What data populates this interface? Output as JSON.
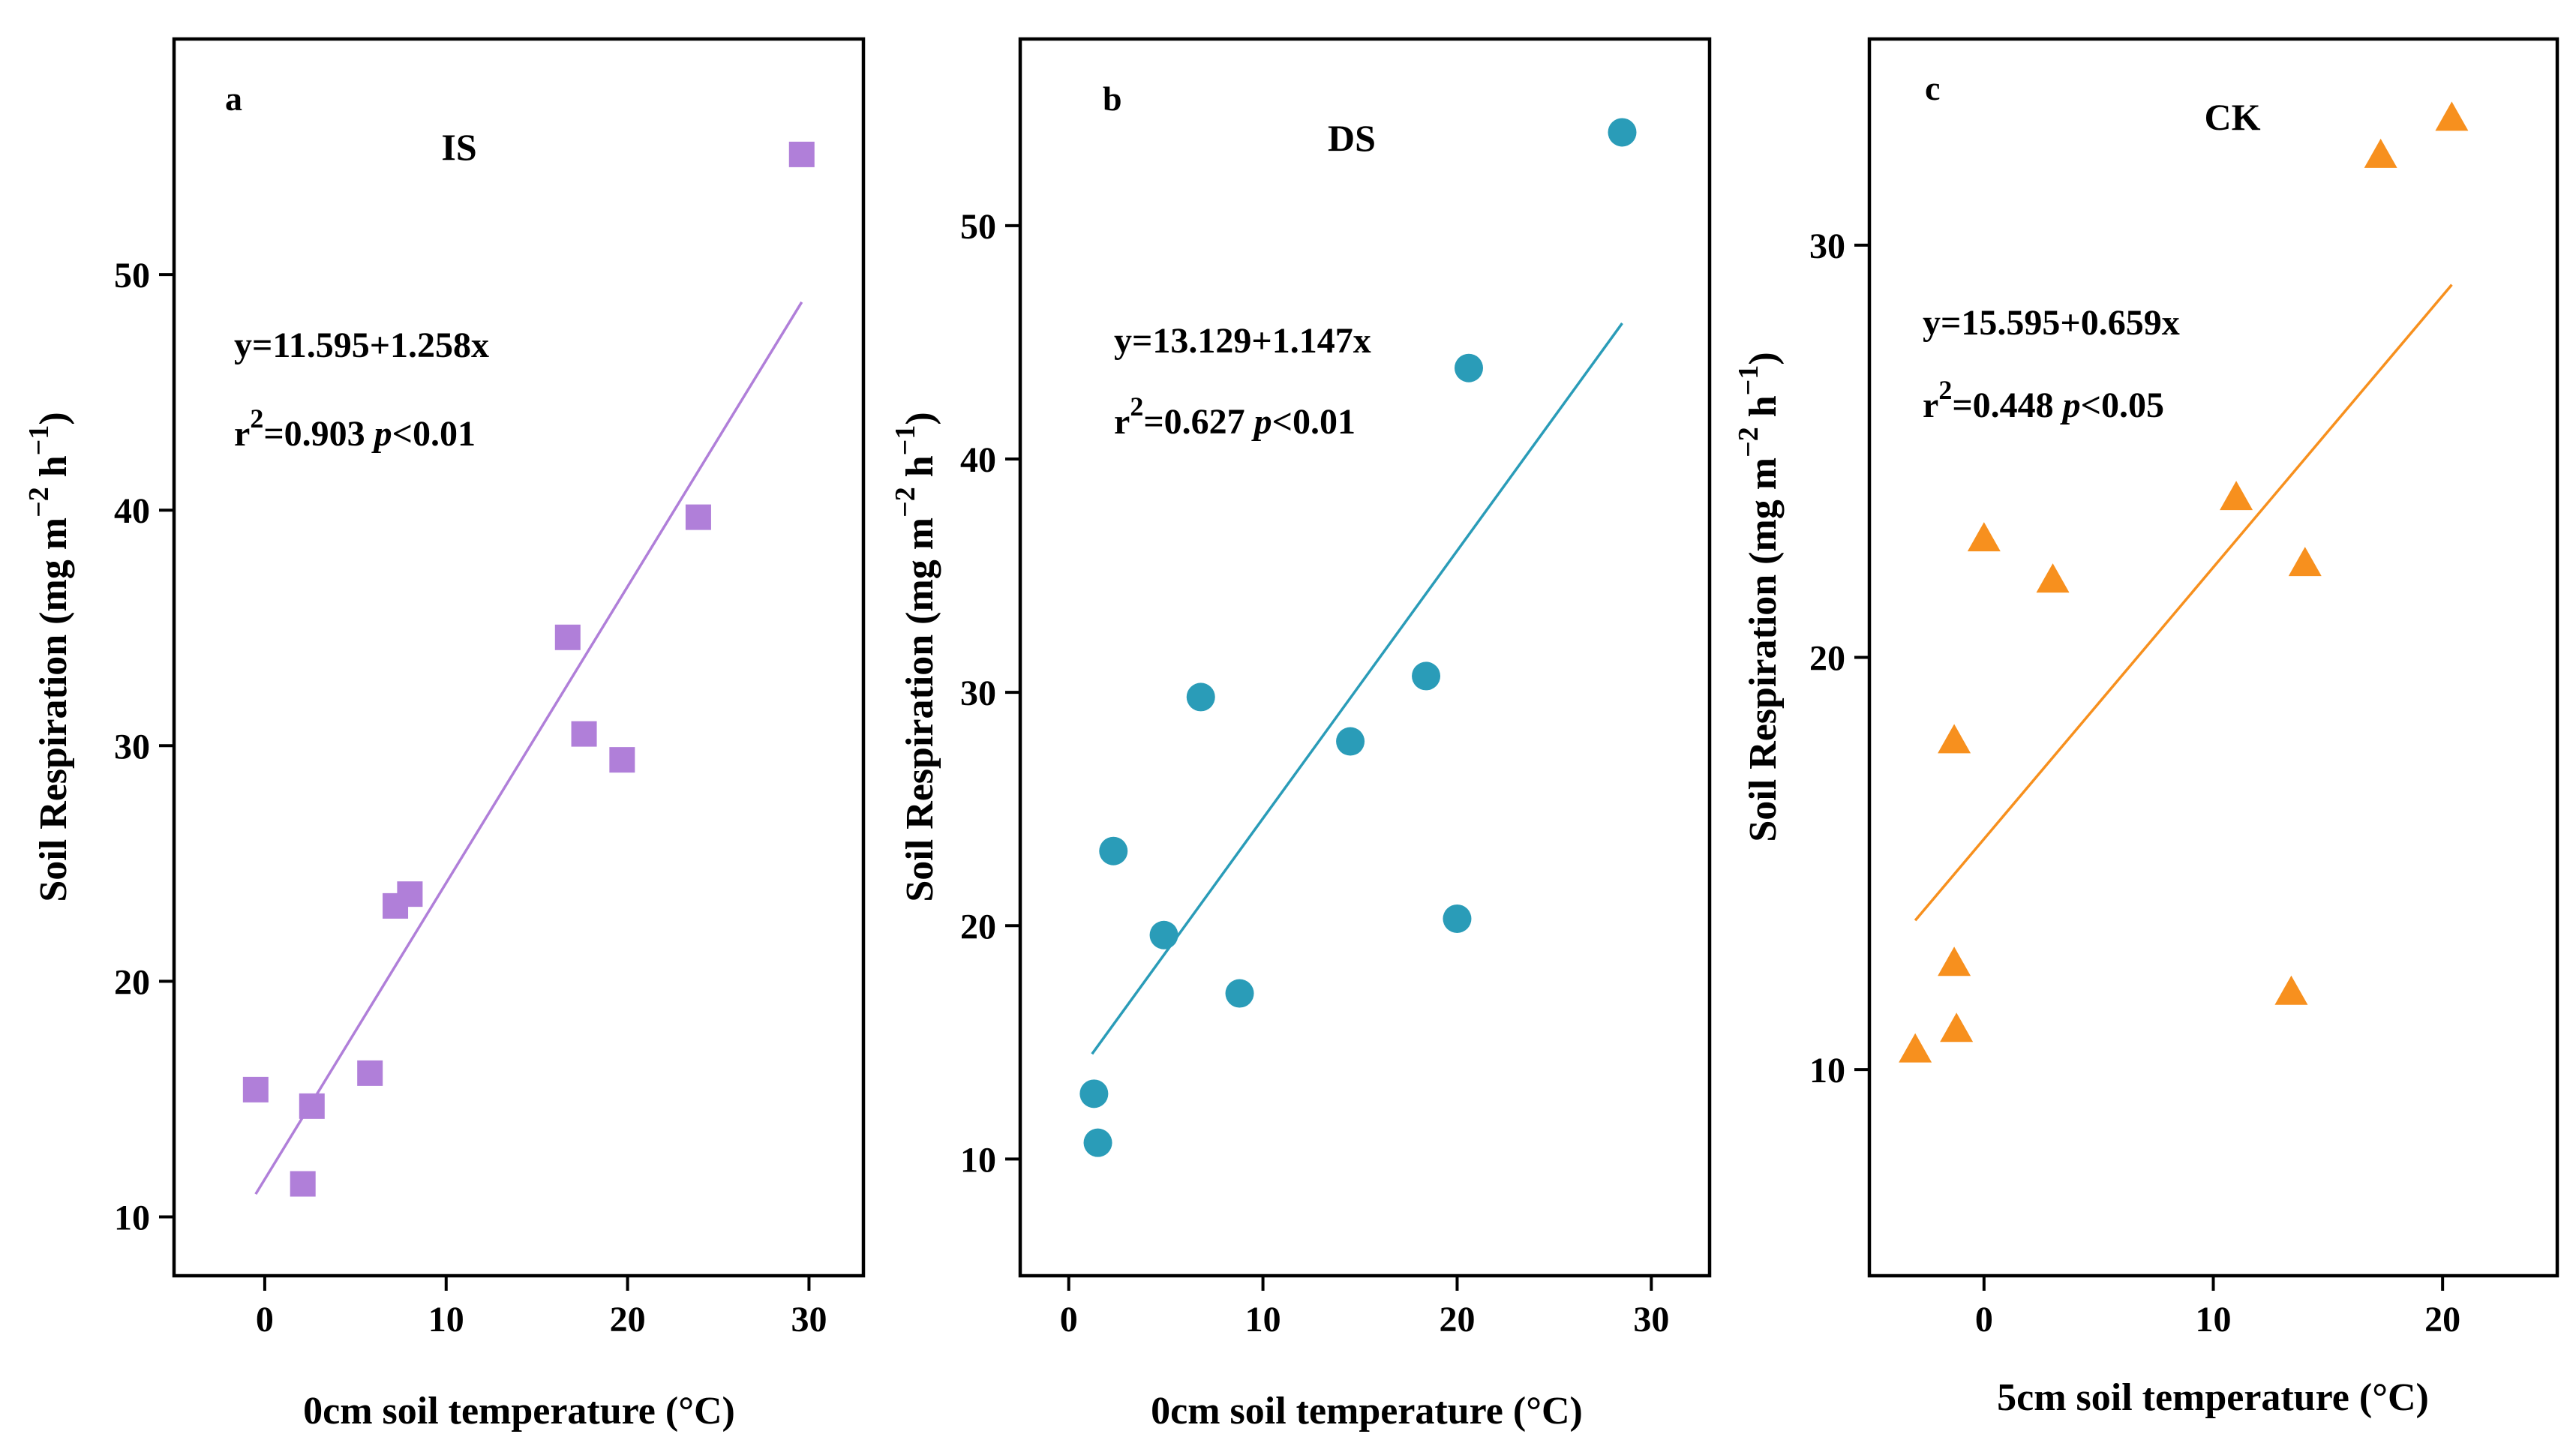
{
  "chart_data": [
    {
      "type": "scatter",
      "panel_letter": "a",
      "title": "IS",
      "xlabel": "0cm soil temperature (°C)",
      "ylabel": {
        "base": "Soil Respiration (mg m",
        "sup1": "−2",
        "mid": " h",
        "sup2": "−1",
        "end": ")"
      },
      "xlim": [
        -5,
        33
      ],
      "ylim": [
        7.5,
        60
      ],
      "xticks": [
        0,
        10,
        20,
        30
      ],
      "yticks": [
        10,
        20,
        30,
        40,
        50
      ],
      "xtick_labels": [
        "0",
        "10",
        "20",
        "30"
      ],
      "ytick_labels": [
        "10",
        "20",
        "30",
        "40",
        "50"
      ],
      "marker": "square",
      "color": "#b07fd9",
      "line_color": "#b07fd9",
      "points": [
        {
          "x": -0.5,
          "y": 15.4
        },
        {
          "x": 2.6,
          "y": 14.7
        },
        {
          "x": 2.1,
          "y": 11.4
        },
        {
          "x": 5.8,
          "y": 16.1
        },
        {
          "x": 7.2,
          "y": 23.2
        },
        {
          "x": 8.0,
          "y": 23.7
        },
        {
          "x": 16.7,
          "y": 34.6
        },
        {
          "x": 17.6,
          "y": 30.5
        },
        {
          "x": 19.7,
          "y": 29.4
        },
        {
          "x": 23.9,
          "y": 39.7
        },
        {
          "x": 29.6,
          "y": 55.1
        }
      ],
      "fit": {
        "intercept": 11.595,
        "slope": 1.258,
        "x_range": [
          -0.5,
          29.6
        ]
      },
      "equation": "y=11.595+1.258x",
      "stats": {
        "r": "r",
        "sup": "2",
        "value": "=0.903 ",
        "p": "p",
        "p_value": "<0.01"
      }
    },
    {
      "type": "scatter",
      "panel_letter": "b",
      "title": "DS",
      "xlabel": "0cm soil temperature (°C)",
      "ylabel": {
        "base": "Soil Respiration (mg m",
        "sup1": "−2",
        "mid": " h",
        "sup2": "−1",
        "end": ")"
      },
      "xlim": [
        -2.5,
        33
      ],
      "ylim": [
        5,
        58
      ],
      "xticks": [
        0,
        10,
        20,
        30
      ],
      "yticks": [
        10,
        20,
        30,
        40,
        50
      ],
      "xtick_labels": [
        "0",
        "10",
        "20",
        "30"
      ],
      "ytick_labels": [
        "10",
        "20",
        "30",
        "40",
        "50"
      ],
      "marker": "circle",
      "color": "#2a9cb8",
      "line_color": "#2a9cb8",
      "points": [
        {
          "x": 1.3,
          "y": 12.8
        },
        {
          "x": 1.5,
          "y": 10.7
        },
        {
          "x": 2.3,
          "y": 23.2
        },
        {
          "x": 4.9,
          "y": 19.6
        },
        {
          "x": 6.8,
          "y": 29.8
        },
        {
          "x": 8.8,
          "y": 17.1
        },
        {
          "x": 14.5,
          "y": 27.9
        },
        {
          "x": 18.4,
          "y": 30.7
        },
        {
          "x": 20.0,
          "y": 20.3
        },
        {
          "x": 20.6,
          "y": 43.9
        },
        {
          "x": 28.5,
          "y": 54.0
        }
      ],
      "fit": {
        "intercept": 13.129,
        "slope": 1.147,
        "x_range": [
          1.2,
          28.5
        ]
      },
      "equation": "y=13.129+1.147x",
      "stats": {
        "r": "r",
        "sup": "2",
        "value": "=0.627 ",
        "p": "p",
        "p_value": "<0.01"
      }
    },
    {
      "type": "scatter",
      "panel_letter": "c",
      "title": "CK",
      "xlabel": "5cm soil temperature (°C)",
      "ylabel": {
        "base": "Soil Respiration (mg m",
        "sup1": "−2",
        "mid": " h",
        "sup2": "−1",
        "end": ")"
      },
      "xlim": [
        -5,
        25
      ],
      "ylim": [
        5,
        35
      ],
      "xticks": [
        0,
        10,
        20
      ],
      "yticks": [
        10,
        20,
        30
      ],
      "xtick_labels": [
        "0",
        "10",
        "20"
      ],
      "ytick_labels": [
        "10",
        "20",
        "30"
      ],
      "marker": "triangle",
      "color": "#f7901e",
      "line_color": "#f7901e",
      "points": [
        {
          "x": -3.0,
          "y": 10.5
        },
        {
          "x": -1.2,
          "y": 11.0
        },
        {
          "x": -1.3,
          "y": 12.6
        },
        {
          "x": -1.3,
          "y": 18.0
        },
        {
          "x": 0.0,
          "y": 22.9
        },
        {
          "x": 3.0,
          "y": 21.9
        },
        {
          "x": 11.0,
          "y": 23.9
        },
        {
          "x": 13.4,
          "y": 11.9
        },
        {
          "x": 14.0,
          "y": 22.3
        },
        {
          "x": 17.3,
          "y": 32.2
        },
        {
          "x": 20.4,
          "y": 33.1
        }
      ],
      "fit": {
        "intercept": 15.595,
        "slope": 0.659,
        "x_range": [
          -3.0,
          20.4
        ]
      },
      "equation": "y=15.595+0.659x",
      "stats": {
        "r": "r",
        "sup": "2",
        "value": "=0.448 ",
        "p": "p",
        "p_value": "<0.05"
      }
    }
  ]
}
